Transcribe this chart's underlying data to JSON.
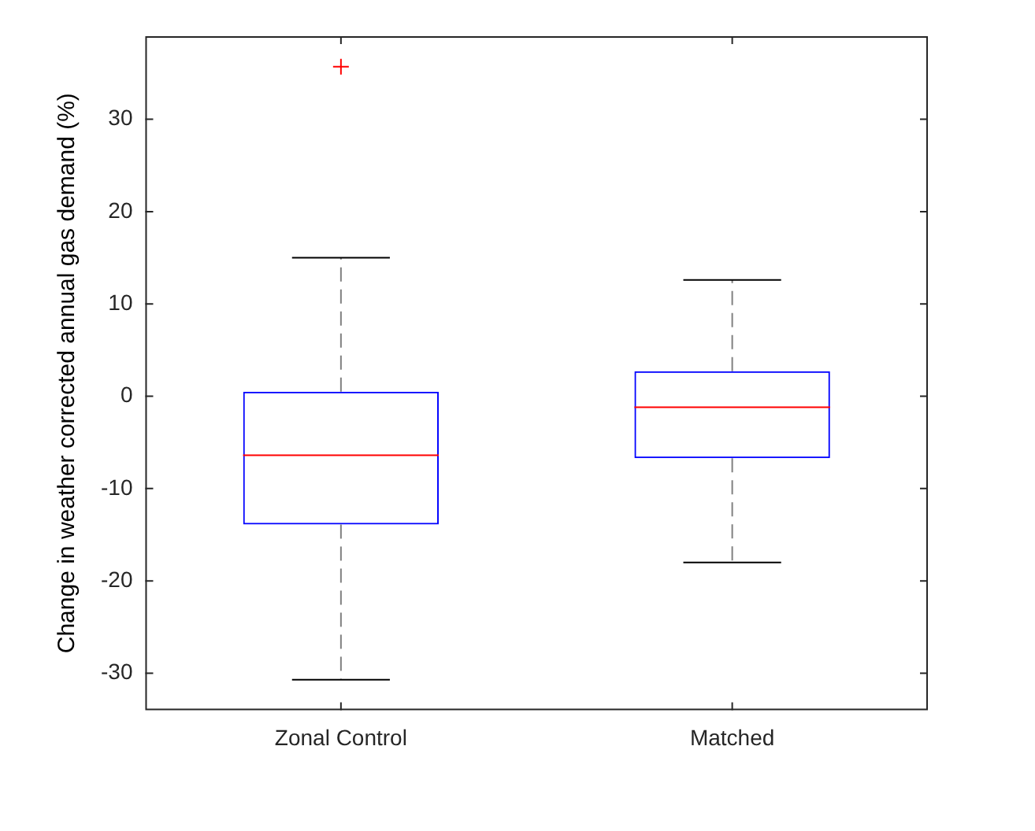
{
  "chart_data": {
    "type": "box",
    "ylabel": "Change in weather corrected annual gas demand (%)",
    "categories": [
      "Zonal Control",
      "Matched"
    ],
    "boxes": [
      {
        "low": -30.7,
        "q1": -13.9,
        "median": -6.4,
        "q3": 0.5,
        "high": 15,
        "outliers": [
          35.7
        ]
      },
      {
        "low": -18,
        "q1": -6.7,
        "median": -1.2,
        "q3": 2.7,
        "high": 12.6
      }
    ],
    "color": "#0000ff",
    "ylim": [
      -34,
      39
    ],
    "yticks": [
      -30,
      -20,
      -10,
      0,
      10,
      20,
      30
    ],
    "grid": false
  }
}
